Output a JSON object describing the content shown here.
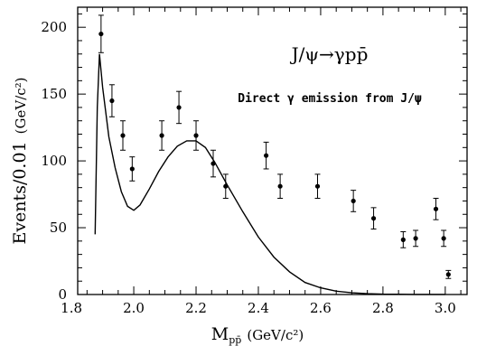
{
  "chart_data": {
    "type": "scatter",
    "title": "J/ψ→γpp̄",
    "subtitle": "Direct γ emission from J/ψ",
    "xlabel": "M",
    "xlabel_sub": "pp̄",
    "xlabel_unit": "(GeV/c²)",
    "ylabel": "Events/0.01",
    "ylabel_unit": "(GeV/c²)",
    "xlim": [
      1.82,
      3.07
    ],
    "ylim": [
      0,
      215
    ],
    "grid": false,
    "legend": "none",
    "x_ticks": [
      1.8,
      2.0,
      2.2,
      2.4,
      2.6,
      2.8,
      3.0
    ],
    "x_tick_labels": [
      "1.8",
      "2.0",
      "2.2",
      "2.4",
      "2.6",
      "2.8",
      "3.0"
    ],
    "y_ticks": [
      0,
      50,
      100,
      150,
      200
    ],
    "y_tick_labels": [
      "0",
      "50",
      "100",
      "150",
      "200"
    ],
    "series": [
      {
        "kind": "data_points_with_errors",
        "points": [
          {
            "x": 1.895,
            "y": 195,
            "err": 14
          },
          {
            "x": 1.93,
            "y": 145,
            "err": 12
          },
          {
            "x": 1.965,
            "y": 119,
            "err": 11
          },
          {
            "x": 1.995,
            "y": 94,
            "err": 9
          },
          {
            "x": 2.09,
            "y": 119,
            "err": 11
          },
          {
            "x": 2.145,
            "y": 140,
            "err": 12
          },
          {
            "x": 2.2,
            "y": 119,
            "err": 11
          },
          {
            "x": 2.255,
            "y": 98,
            "err": 10
          },
          {
            "x": 2.295,
            "y": 81,
            "err": 9
          },
          {
            "x": 2.425,
            "y": 104,
            "err": 10
          },
          {
            "x": 2.47,
            "y": 81,
            "err": 9
          },
          {
            "x": 2.59,
            "y": 81,
            "err": 9
          },
          {
            "x": 2.705,
            "y": 70,
            "err": 8
          },
          {
            "x": 2.77,
            "y": 57,
            "err": 8
          },
          {
            "x": 2.865,
            "y": 41,
            "err": 6
          },
          {
            "x": 2.905,
            "y": 42,
            "err": 6
          },
          {
            "x": 2.97,
            "y": 64,
            "err": 8
          },
          {
            "x": 2.995,
            "y": 42,
            "err": 6
          },
          {
            "x": 3.01,
            "y": 15,
            "err": 3
          }
        ]
      },
      {
        "kind": "curve",
        "points": [
          [
            1.876,
            45
          ],
          [
            1.883,
            140
          ],
          [
            1.89,
            180
          ],
          [
            1.9,
            155
          ],
          [
            1.92,
            118
          ],
          [
            1.94,
            95
          ],
          [
            1.96,
            77
          ],
          [
            1.98,
            66
          ],
          [
            2.0,
            63
          ],
          [
            2.02,
            67
          ],
          [
            2.05,
            79
          ],
          [
            2.08,
            92
          ],
          [
            2.11,
            103
          ],
          [
            2.14,
            111
          ],
          [
            2.17,
            115
          ],
          [
            2.2,
            115
          ],
          [
            2.23,
            110
          ],
          [
            2.26,
            99
          ],
          [
            2.3,
            82
          ],
          [
            2.35,
            62
          ],
          [
            2.4,
            43
          ],
          [
            2.45,
            28
          ],
          [
            2.5,
            17
          ],
          [
            2.55,
            9
          ],
          [
            2.6,
            5
          ],
          [
            2.65,
            2.5
          ],
          [
            2.7,
            1.3
          ],
          [
            2.75,
            0.6
          ],
          [
            2.8,
            0.3
          ],
          [
            2.85,
            0.2
          ],
          [
            2.9,
            0.1
          ],
          [
            3.0,
            0.05
          ]
        ]
      }
    ]
  }
}
